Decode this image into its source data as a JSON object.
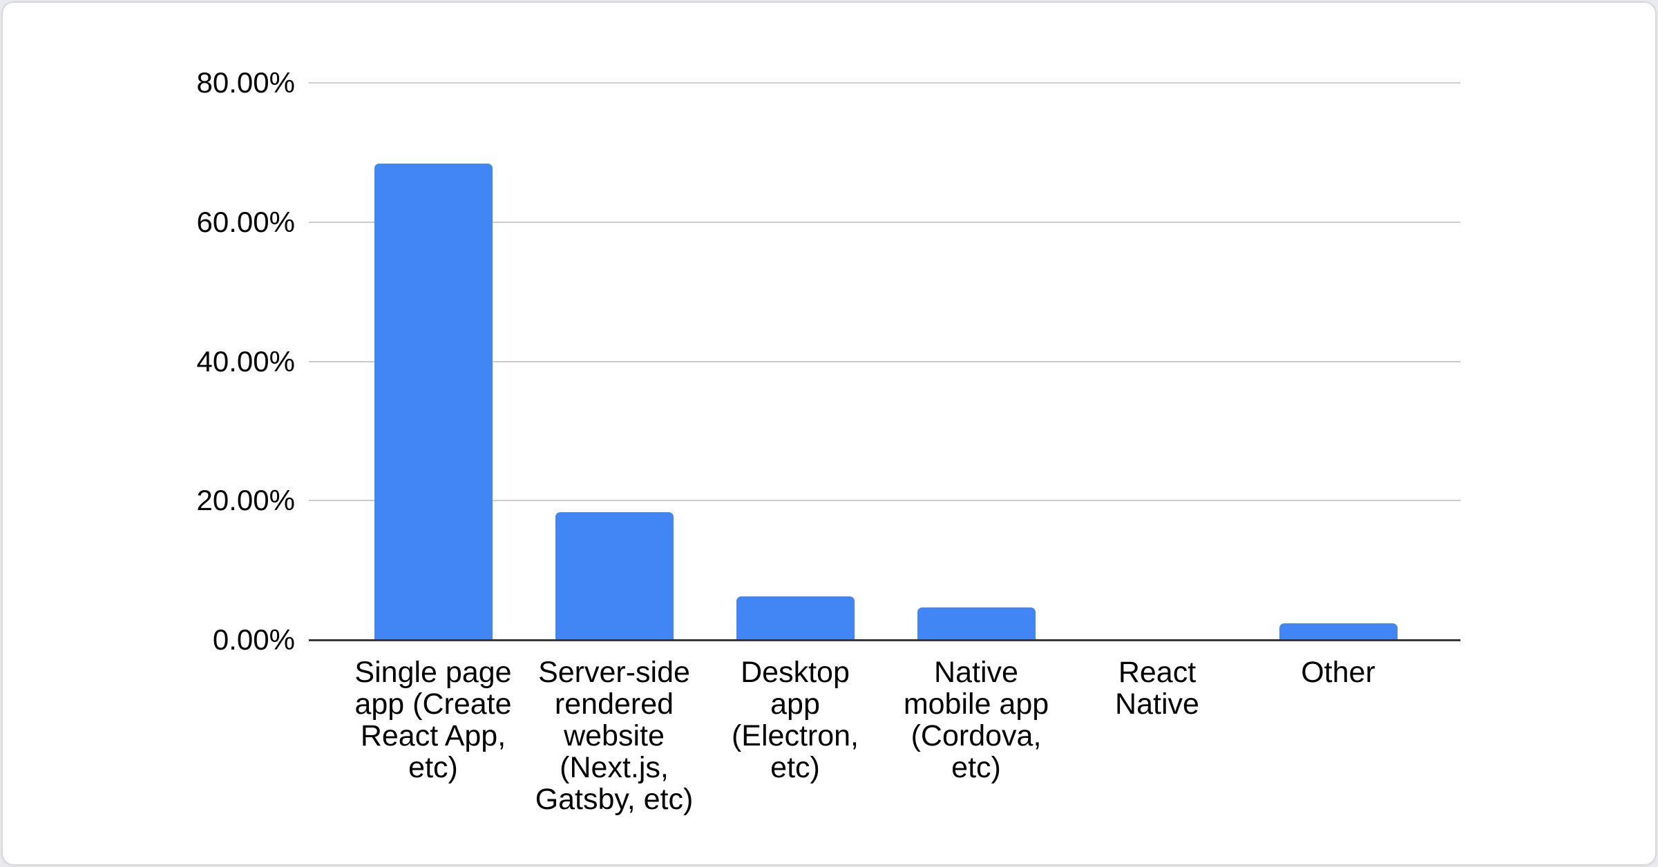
{
  "page": {
    "background_color": "#e8eaed",
    "card": {
      "background_color": "#ffffff",
      "border_color": "#d7d9dc"
    }
  },
  "chart_data": {
    "type": "bar",
    "title": "",
    "xlabel": "",
    "ylabel": "",
    "categories": [
      "Single page app (Create React App, etc)",
      "Server-side rendered website (Next.js, Gatsby, etc)",
      "Desktop app (Electron, etc)",
      "Native mobile app (Cordova, etc)",
      "React Native",
      "Other"
    ],
    "category_display_lines": [
      [
        "Single page",
        "app (Create",
        "React App,",
        "etc)"
      ],
      [
        "Server-side",
        "rendered",
        "website",
        "(Next.js,",
        "Gatsby, etc)"
      ],
      [
        "Desktop",
        "app",
        "(Electron,",
        "etc)"
      ],
      [
        "Native",
        "mobile app",
        "(Cordova,",
        "etc)"
      ],
      [
        "React",
        "Native"
      ],
      [
        "Other"
      ]
    ],
    "values": [
      68.4,
      18.3,
      6.2,
      4.7,
      0,
      2.4
    ],
    "value_unit": "%",
    "y_ticks": [
      {
        "label": "0.00%",
        "value": 0
      },
      {
        "label": "20.00%",
        "value": 20
      },
      {
        "label": "40.00%",
        "value": 40
      },
      {
        "label": "60.00%",
        "value": 60
      },
      {
        "label": "80.00%",
        "value": 80
      }
    ],
    "ylim": [
      0,
      80
    ],
    "grid": true,
    "legend": "none",
    "bar_color": "#4285f4",
    "gridline_color": "#cccccc",
    "axis_line_color": "#373737",
    "label_color": "#000000"
  }
}
